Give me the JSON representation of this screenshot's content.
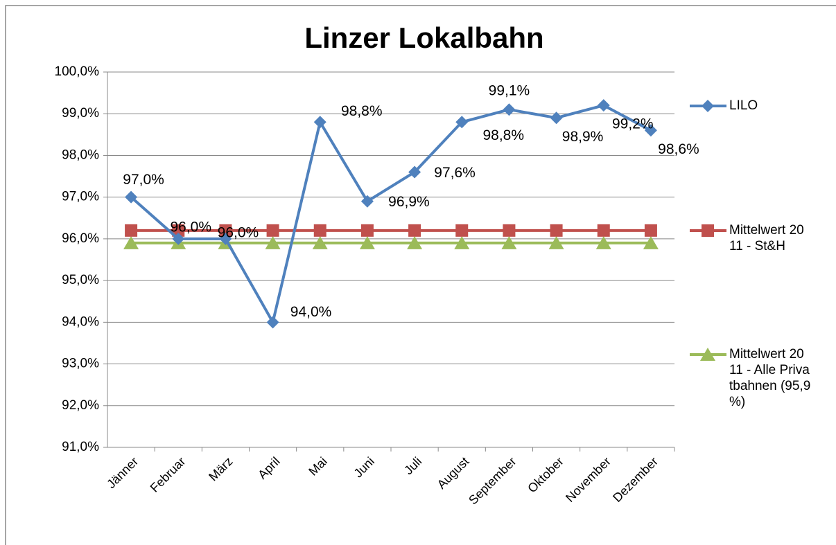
{
  "chart_data": {
    "type": "line",
    "title": "Linzer Lokalbahn",
    "categories": [
      "Jänner",
      "Februar",
      "März",
      "April",
      "Mai",
      "Juni",
      "Juli",
      "August",
      "September",
      "Oktober",
      "November",
      "Dezember"
    ],
    "series": [
      {
        "name": "LILO",
        "color": "#4f81bd",
        "marker": "diamond",
        "values": [
          97.0,
          96.0,
          96.0,
          94.0,
          98.8,
          96.9,
          97.6,
          98.8,
          99.1,
          98.9,
          99.2,
          98.6
        ],
        "value_labels": [
          "97,0%",
          "96,0%",
          "96,0%",
          "94,0%",
          "98,8%",
          "96,9%",
          "97,6%",
          "98,8%",
          "99,1%",
          "98,9%",
          "99,2%",
          "98,6%"
        ]
      },
      {
        "name": "Mittelwert 2011 - St&H",
        "color": "#c0504d",
        "marker": "square",
        "values": [
          96.2,
          96.2,
          96.2,
          96.2,
          96.2,
          96.2,
          96.2,
          96.2,
          96.2,
          96.2,
          96.2,
          96.2
        ]
      },
      {
        "name": "Mittelwert 2011 - Alle Privatbahnen (95,9 %)",
        "color": "#9bbb59",
        "marker": "triangle",
        "values": [
          95.9,
          95.9,
          95.9,
          95.9,
          95.9,
          95.9,
          95.9,
          95.9,
          95.9,
          95.9,
          95.9,
          95.9
        ]
      }
    ],
    "ylim": [
      91,
      100
    ],
    "yticks": [
      {
        "value": 91,
        "label": "91,0%"
      },
      {
        "value": 92,
        "label": "92,0%"
      },
      {
        "value": 93,
        "label": "93,0%"
      },
      {
        "value": 94,
        "label": "94,0%"
      },
      {
        "value": 95,
        "label": "95,0%"
      },
      {
        "value": 96,
        "label": "96,0%"
      },
      {
        "value": 97,
        "label": "97,0%"
      },
      {
        "value": 98,
        "label": "98,0%"
      },
      {
        "value": 99,
        "label": "99,0%"
      },
      {
        "value": 100,
        "label": "100,0%"
      }
    ],
    "grid": true,
    "legend": "right"
  }
}
